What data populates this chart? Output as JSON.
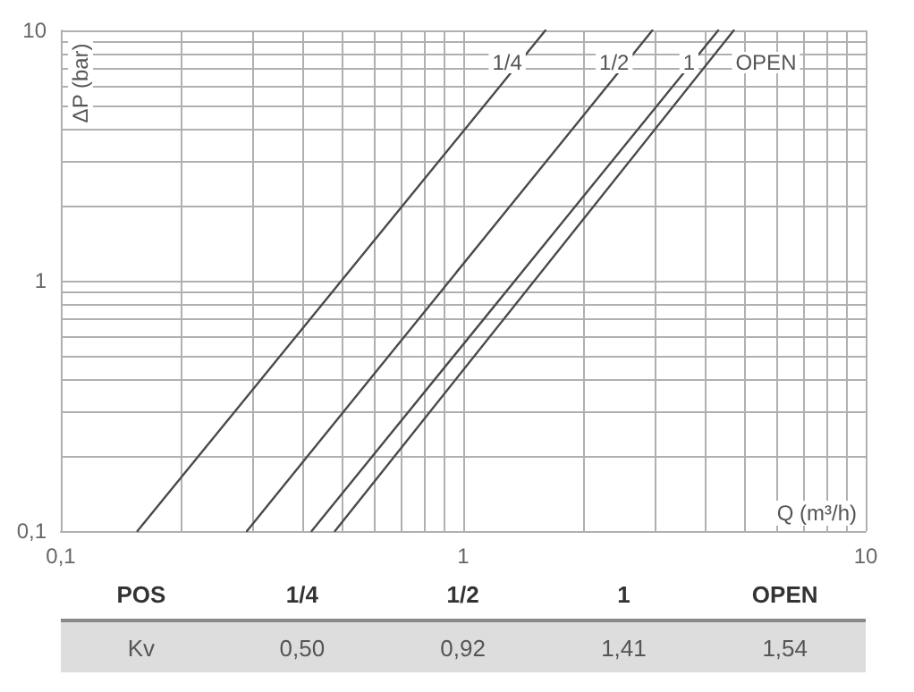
{
  "chart_data": {
    "type": "line",
    "xlabel": "Q (m³/h)",
    "ylabel": "ΔP (bar)",
    "log": "xy",
    "grid": true,
    "legend": false,
    "marker": "none",
    "line_style": "solid",
    "xlim": [
      0.1,
      10
    ],
    "ylim": [
      0.1,
      10
    ],
    "xticks": [
      {
        "value": 0.1,
        "label": "0,1"
      },
      {
        "value": 0.2,
        "label": null
      },
      {
        "value": 0.3,
        "label": null
      },
      {
        "value": 0.4,
        "label": null
      },
      {
        "value": 0.5,
        "label": null
      },
      {
        "value": 0.6,
        "label": null
      },
      {
        "value": 0.7,
        "label": null
      },
      {
        "value": 0.8,
        "label": null
      },
      {
        "value": 0.9,
        "label": null
      },
      1,
      {
        "value": 2,
        "label": null
      },
      {
        "value": 3,
        "label": null
      },
      {
        "value": 4,
        "label": null
      },
      {
        "value": 5,
        "label": null
      },
      {
        "value": 6,
        "label": null
      },
      {
        "value": 7,
        "label": null
      },
      {
        "value": 8,
        "label": null
      },
      {
        "value": 9,
        "label": null
      },
      10
    ],
    "yticks": [
      {
        "value": 0.1,
        "label": "0,1"
      },
      {
        "value": 0.2,
        "label": null
      },
      {
        "value": 0.3,
        "label": null
      },
      {
        "value": 0.4,
        "label": null
      },
      {
        "value": 0.5,
        "label": null
      },
      {
        "value": 0.6,
        "label": null
      },
      {
        "value": 0.7,
        "label": null
      },
      {
        "value": 0.8,
        "label": null
      },
      {
        "value": 0.9,
        "label": null
      },
      1,
      {
        "value": 2,
        "label": null
      },
      {
        "value": 3,
        "label": null
      },
      {
        "value": 4,
        "label": null
      },
      {
        "value": 5,
        "label": null
      },
      {
        "value": 6,
        "label": null
      },
      {
        "value": 7,
        "label": null
      },
      {
        "value": 8,
        "label": null
      },
      {
        "value": 9,
        "label": null
      },
      10
    ],
    "series": [
      {
        "name": "1/4",
        "color": "#4a4a4a",
        "x": [
          0.155,
          1.6
        ],
        "values": [
          0.1,
          10
        ]
      },
      {
        "name": "1/2",
        "color": "#4a4a4a",
        "x": [
          0.29,
          2.95
        ],
        "values": [
          0.1,
          10
        ]
      },
      {
        "name": "1",
        "color": "#4a4a4a",
        "x": [
          0.42,
          4.3
        ],
        "values": [
          0.1,
          10
        ]
      },
      {
        "name": "OPEN",
        "color": "#4a4a4a",
        "x": [
          0.48,
          4.7
        ],
        "values": [
          0.1,
          10
        ]
      }
    ],
    "annotations": [
      "POS",
      "Kv",
      "0,50",
      "0,92",
      "1,41",
      "1,54"
    ]
  }
}
